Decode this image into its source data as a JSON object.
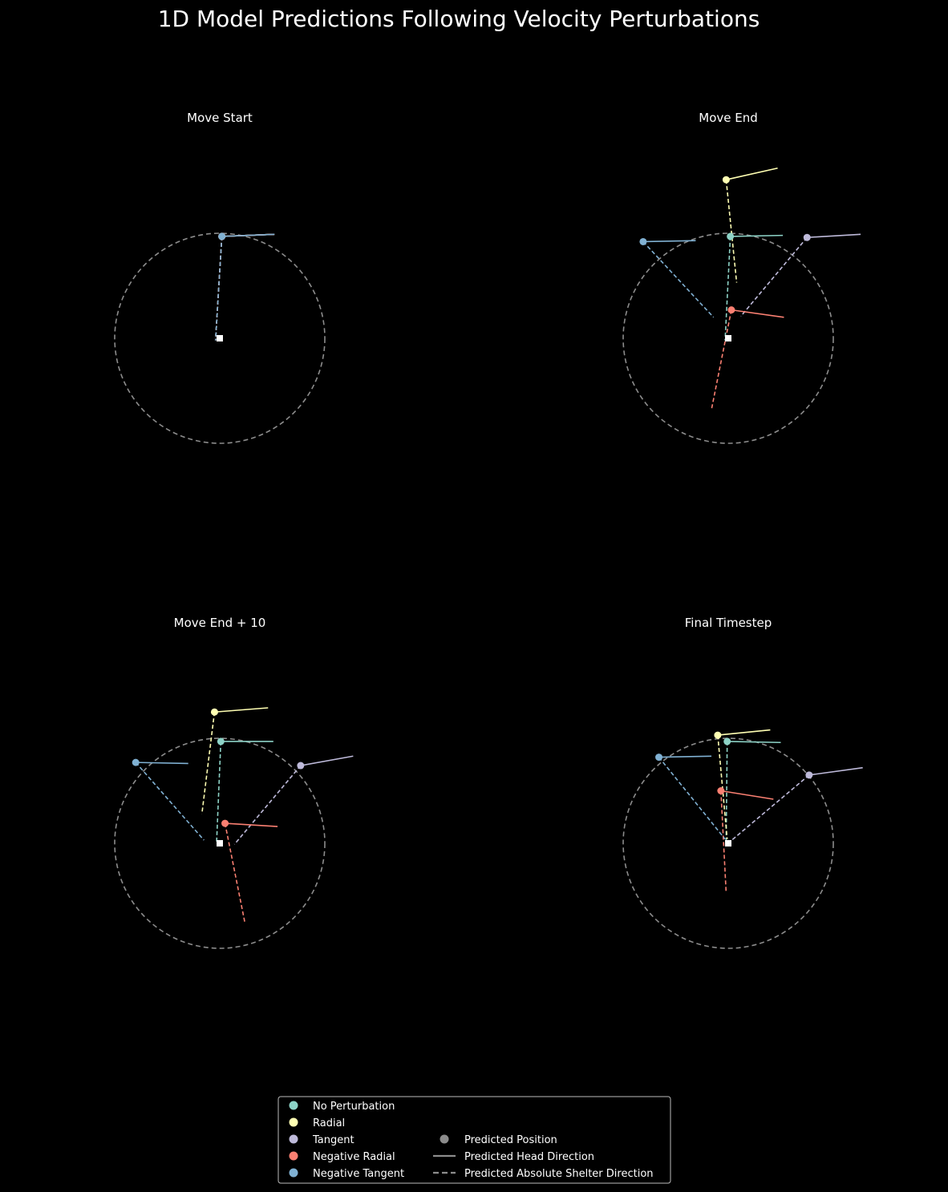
{
  "title": "1D Model Predictions Following Velocity Perturbations",
  "colors": {
    "background": "#000000",
    "arena": "#8c8c8c",
    "shelter": "#ffffff",
    "legend_border": "#bbbbbb",
    "generic": "#8c8c8c"
  },
  "legend": {
    "perturbations": [
      {
        "label": "No Perturbation",
        "color": "#8dd3c7"
      },
      {
        "label": "Radial",
        "color": "#ffffb3"
      },
      {
        "label": "Tangent",
        "color": "#bebada"
      },
      {
        "label": "Negative Radial",
        "color": "#fb8072"
      },
      {
        "label": "Negative Tangent",
        "color": "#80b1d3"
      }
    ],
    "elements": [
      {
        "label": "Predicted Position",
        "style": "marker"
      },
      {
        "label": "Predicted Head Direction",
        "style": "solid"
      },
      {
        "label": "Predicted Absolute Shelter Direction",
        "style": "dashed"
      }
    ]
  },
  "chart_data": [
    {
      "type": "scatter",
      "title": "Move Start",
      "arena_radius": 1.0,
      "shelter": [
        0,
        0
      ],
      "points": [
        {
          "series": "No Perturbation",
          "pos": [
            0.02,
            0.97
          ],
          "head": [
            0.52,
            0.99
          ],
          "shelter_line": [
            -0.04,
            -0.02
          ]
        },
        {
          "series": "Radial",
          "pos": [
            0.02,
            0.97
          ],
          "head": [
            0.52,
            0.99
          ],
          "shelter_line": [
            -0.04,
            -0.02
          ]
        },
        {
          "series": "Tangent",
          "pos": [
            0.02,
            0.97
          ],
          "head": [
            0.52,
            0.99
          ],
          "shelter_line": [
            -0.04,
            -0.02
          ]
        },
        {
          "series": "Negative Radial",
          "pos": [
            0.02,
            0.97
          ],
          "head": [
            0.52,
            0.99
          ],
          "shelter_line": [
            -0.04,
            -0.02
          ]
        },
        {
          "series": "Negative Tangent",
          "pos": [
            0.02,
            0.97
          ],
          "head": [
            0.52,
            0.99
          ],
          "shelter_line": [
            -0.04,
            -0.02
          ]
        }
      ]
    },
    {
      "type": "scatter",
      "title": "Move End",
      "arena_radius": 1.0,
      "shelter": [
        0,
        0
      ],
      "points": [
        {
          "series": "No Perturbation",
          "pos": [
            0.02,
            0.97
          ],
          "head": [
            0.52,
            0.98
          ],
          "shelter_line": [
            -0.03,
            -0.02
          ]
        },
        {
          "series": "Radial",
          "pos": [
            -0.02,
            1.51
          ],
          "head": [
            0.47,
            1.62
          ],
          "shelter_line": [
            0.08,
            0.53
          ]
        },
        {
          "series": "Tangent",
          "pos": [
            0.75,
            0.96
          ],
          "head": [
            1.26,
            0.99
          ],
          "shelter_line": [
            0.12,
            0.21
          ]
        },
        {
          "series": "Negative Radial",
          "pos": [
            0.03,
            0.27
          ],
          "head": [
            0.53,
            0.2
          ],
          "shelter_line": [
            -0.16,
            -0.68
          ]
        },
        {
          "series": "Negative Tangent",
          "pos": [
            -0.81,
            0.92
          ],
          "head": [
            -0.31,
            0.93
          ],
          "shelter_line": [
            -0.14,
            0.2
          ]
        }
      ]
    },
    {
      "type": "scatter",
      "title": "Move End + 10",
      "arena_radius": 1.0,
      "shelter": [
        0,
        0
      ],
      "points": [
        {
          "series": "No Perturbation",
          "pos": [
            0.01,
            0.97
          ],
          "head": [
            0.51,
            0.97
          ],
          "shelter_line": [
            -0.03,
            0.01
          ]
        },
        {
          "series": "Radial",
          "pos": [
            -0.05,
            1.25
          ],
          "head": [
            0.46,
            1.29
          ],
          "shelter_line": [
            -0.17,
            0.28
          ]
        },
        {
          "series": "Tangent",
          "pos": [
            0.77,
            0.74
          ],
          "head": [
            1.27,
            0.83
          ],
          "shelter_line": [
            0.14,
            -0.01
          ]
        },
        {
          "series": "Negative Radial",
          "pos": [
            0.05,
            0.19
          ],
          "head": [
            0.55,
            0.16
          ],
          "shelter_line": [
            0.24,
            -0.76
          ]
        },
        {
          "series": "Negative Tangent",
          "pos": [
            -0.8,
            0.77
          ],
          "head": [
            -0.3,
            0.76
          ],
          "shelter_line": [
            -0.15,
            0.03
          ]
        }
      ]
    },
    {
      "type": "scatter",
      "title": "Final Timestep",
      "arena_radius": 1.0,
      "shelter": [
        0,
        0
      ],
      "points": [
        {
          "series": "No Perturbation",
          "pos": [
            -0.01,
            0.97
          ],
          "head": [
            0.5,
            0.96
          ],
          "shelter_line": [
            -0.02,
            0.03
          ]
        },
        {
          "series": "Radial",
          "pos": [
            -0.1,
            1.03
          ],
          "head": [
            0.4,
            1.08
          ],
          "shelter_line": [
            -0.01,
            0.04
          ]
        },
        {
          "series": "Tangent",
          "pos": [
            0.77,
            0.65
          ],
          "head": [
            1.28,
            0.72
          ],
          "shelter_line": [
            0.01,
            0.01
          ]
        },
        {
          "series": "Negative Radial",
          "pos": [
            -0.07,
            0.5
          ],
          "head": [
            0.43,
            0.42
          ],
          "shelter_line": [
            -0.02,
            -0.47
          ]
        },
        {
          "series": "Negative Tangent",
          "pos": [
            -0.66,
            0.82
          ],
          "head": [
            -0.16,
            0.83
          ],
          "shelter_line": [
            -0.03,
            0.04
          ]
        }
      ]
    }
  ]
}
